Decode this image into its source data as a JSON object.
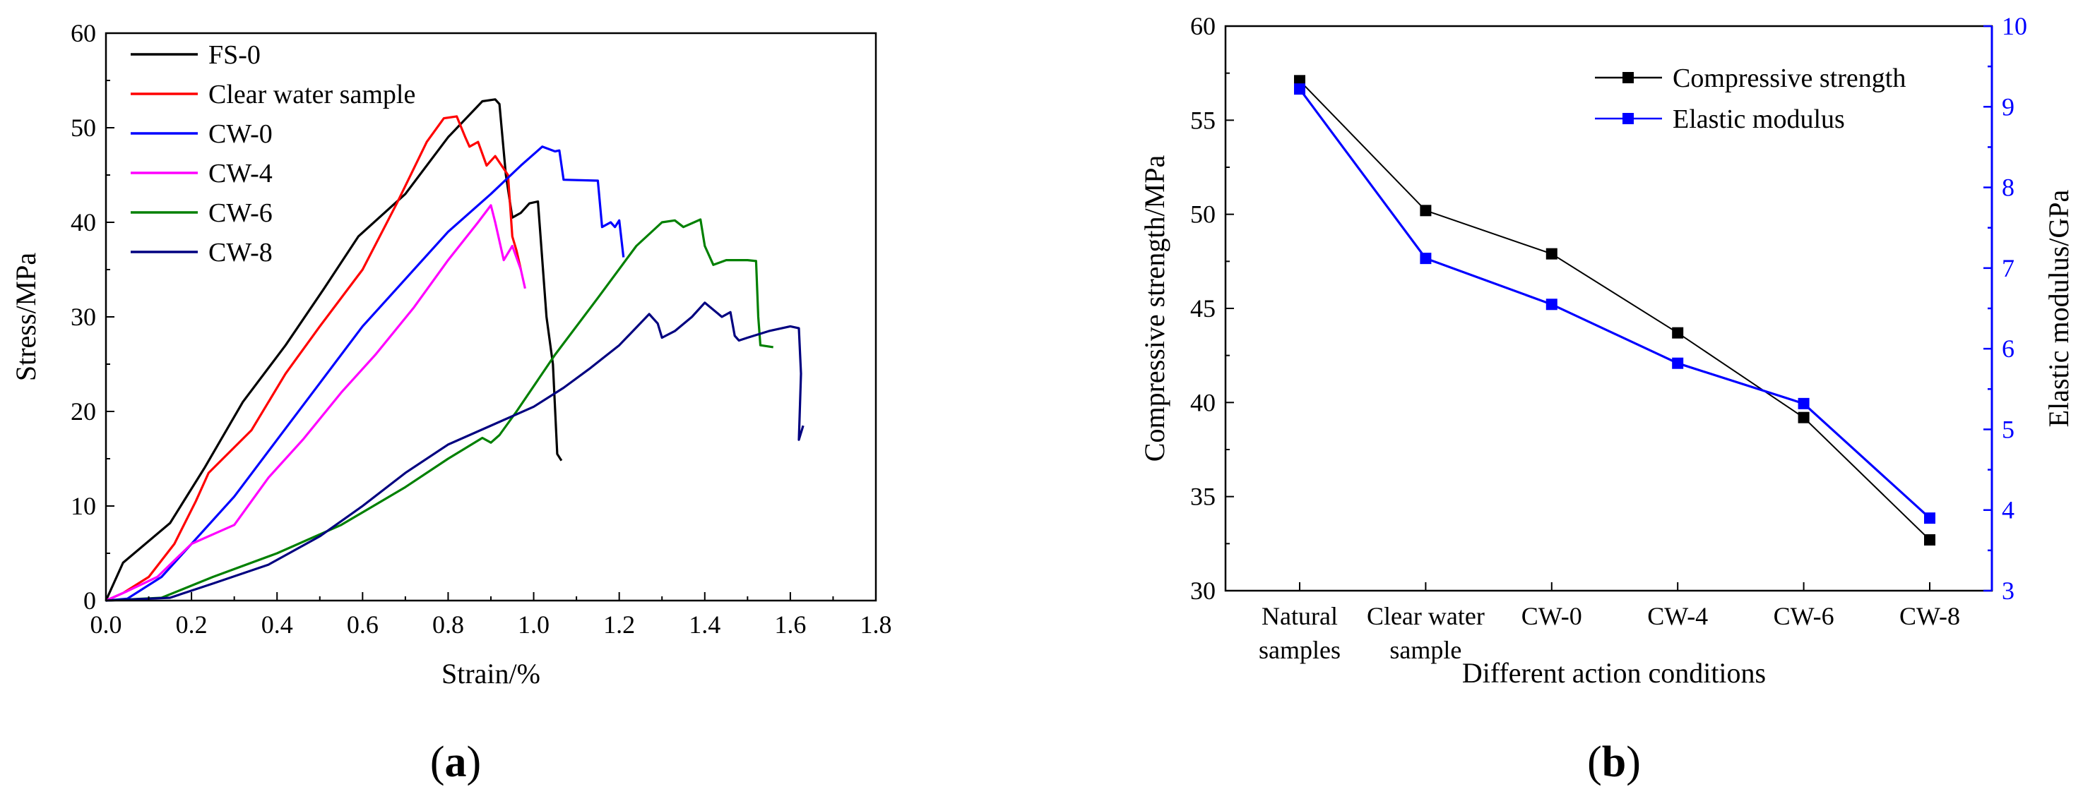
{
  "chart_data": [
    {
      "panel": "(a)",
      "panel_prefix": "(",
      "panel_letter": "a",
      "panel_suffix": ")",
      "type": "line",
      "title": "",
      "xlabel": "Strain/%",
      "ylabel": "Stress/MPa",
      "xlim": [
        0,
        1.8
      ],
      "ylim": [
        0,
        60
      ],
      "xticks": [
        0,
        0.2,
        0.4,
        0.6,
        0.8,
        1.0,
        1.2,
        1.4,
        1.6,
        1.8
      ],
      "xtick_labels": [
        "0.0",
        "0.2",
        "0.4",
        "0.6",
        "0.8",
        "1.0",
        "1.2",
        "1.4",
        "1.6",
        "1.8"
      ],
      "yticks": [
        0,
        10,
        20,
        30,
        40,
        50,
        60
      ],
      "ytick_labels": [
        "0",
        "10",
        "20",
        "30",
        "40",
        "50",
        "60"
      ],
      "legend_position": "top-left",
      "series": [
        {
          "name": "FS-0",
          "color": "#000000",
          "x": [
            0,
            0.04,
            0.15,
            0.23,
            0.32,
            0.42,
            0.51,
            0.59,
            0.7,
            0.8,
            0.88,
            0.91,
            0.92,
            0.935,
            0.95,
            0.97,
            0.99,
            1.01,
            1.03,
            1.045,
            1.055,
            1.065
          ],
          "y": [
            0,
            4,
            8.2,
            14,
            21,
            27,
            33,
            38.5,
            43,
            49,
            52.8,
            53,
            52.5,
            45,
            40.5,
            41,
            42,
            42.2,
            30,
            25,
            15.5,
            14.8
          ]
        },
        {
          "name": "Clear water sample",
          "color": "#ff0000",
          "x": [
            0,
            0.04,
            0.1,
            0.16,
            0.21,
            0.24,
            0.34,
            0.42,
            0.5,
            0.6,
            0.68,
            0.75,
            0.79,
            0.82,
            0.84,
            0.85,
            0.87,
            0.89,
            0.91,
            0.94,
            0.95,
            0.96,
            0.97
          ],
          "y": [
            0,
            0.8,
            2.5,
            6,
            10.5,
            13.5,
            18,
            24,
            29,
            35,
            42,
            48.5,
            51,
            51.2,
            49,
            48,
            48.5,
            46,
            47,
            45,
            38.5,
            37,
            35
          ]
        },
        {
          "name": "CW-0",
          "color": "#0000ff",
          "x": [
            0,
            0.05,
            0.13,
            0.19,
            0.3,
            0.4,
            0.5,
            0.6,
            0.7,
            0.8,
            0.9,
            0.97,
            1.02,
            1.05,
            1.06,
            1.07,
            1.15,
            1.16,
            1.18,
            1.19,
            1.2,
            1.21
          ],
          "y": [
            0,
            0.2,
            2.5,
            5.5,
            11,
            17,
            23,
            29,
            34,
            39,
            43,
            46,
            48,
            47.5,
            47.6,
            44.5,
            44.4,
            39.5,
            40,
            39.5,
            40.2,
            36.3
          ]
        },
        {
          "name": "CW-4",
          "color": "#ff00ff",
          "x": [
            0,
            0.05,
            0.12,
            0.2,
            0.3,
            0.38,
            0.46,
            0.55,
            0.63,
            0.72,
            0.8,
            0.87,
            0.9,
            0.91,
            0.93,
            0.95,
            0.97,
            0.98
          ],
          "y": [
            0,
            1,
            2.5,
            6,
            8,
            13,
            17,
            22,
            26,
            31,
            36,
            40,
            41.8,
            40,
            36,
            37.5,
            35,
            33
          ]
        },
        {
          "name": "CW-6",
          "color": "#008000",
          "x": [
            0,
            0.13,
            0.25,
            0.4,
            0.55,
            0.7,
            0.8,
            0.88,
            0.9,
            0.92,
            0.96,
            1.05,
            1.15,
            1.24,
            1.3,
            1.33,
            1.35,
            1.39,
            1.4,
            1.42,
            1.45,
            1.5,
            1.52,
            1.525,
            1.53,
            1.56
          ],
          "y": [
            0,
            0.3,
            2.5,
            5,
            8,
            12,
            15,
            17.2,
            16.7,
            17.5,
            20,
            26,
            32,
            37.5,
            40,
            40.2,
            39.5,
            40.3,
            37.5,
            35.5,
            36,
            36,
            35.9,
            30,
            27,
            26.8
          ]
        },
        {
          "name": "CW-8",
          "color": "#000080",
          "x": [
            0,
            0.15,
            0.25,
            0.38,
            0.5,
            0.6,
            0.7,
            0.8,
            0.9,
            1.0,
            1.07,
            1.13,
            1.2,
            1.27,
            1.29,
            1.3,
            1.33,
            1.37,
            1.4,
            1.44,
            1.46,
            1.47,
            1.48,
            1.5,
            1.55,
            1.6,
            1.62,
            1.625,
            1.62,
            1.63
          ],
          "y": [
            0,
            0.3,
            1.8,
            3.8,
            6.8,
            10,
            13.5,
            16.5,
            18.5,
            20.5,
            22.5,
            24.5,
            27,
            30.3,
            29.3,
            27.8,
            28.5,
            30,
            31.5,
            30,
            30.5,
            28,
            27.5,
            27.8,
            28.5,
            29,
            28.8,
            24,
            17,
            18.5
          ]
        }
      ]
    },
    {
      "panel": "(b)",
      "panel_prefix": "(",
      "panel_letter": "b",
      "panel_suffix": ")",
      "type": "line",
      "title": "",
      "xlabel": "Different action conditions",
      "ylabel": "Compressive strength/MPa",
      "y2label": "Elastic modulus/GPa",
      "categories": [
        {
          "line1": "Natural",
          "line2": "samples"
        },
        {
          "line1": "Clear water",
          "line2": "sample"
        },
        {
          "line1": "CW-0",
          "line2": ""
        },
        {
          "line1": "CW-4",
          "line2": ""
        },
        {
          "line1": "CW-6",
          "line2": ""
        },
        {
          "line1": "CW-8",
          "line2": ""
        }
      ],
      "ylim": [
        30,
        60
      ],
      "yticks": [
        30,
        35,
        40,
        45,
        50,
        55,
        60
      ],
      "y2lim": [
        3,
        10
      ],
      "y2ticks": [
        3,
        4,
        5,
        6,
        7,
        8,
        9,
        10
      ],
      "legend_position": "top-right",
      "series": [
        {
          "name": "Compressive strength",
          "axis": "left",
          "color": "#000000",
          "values": [
            57.1,
            50.2,
            47.9,
            43.7,
            39.2,
            32.7
          ]
        },
        {
          "name": "Elastic modulus",
          "axis": "right",
          "color": "#0000ff",
          "values": [
            9.22,
            7.12,
            6.55,
            5.82,
            5.32,
            3.9
          ]
        }
      ]
    }
  ]
}
